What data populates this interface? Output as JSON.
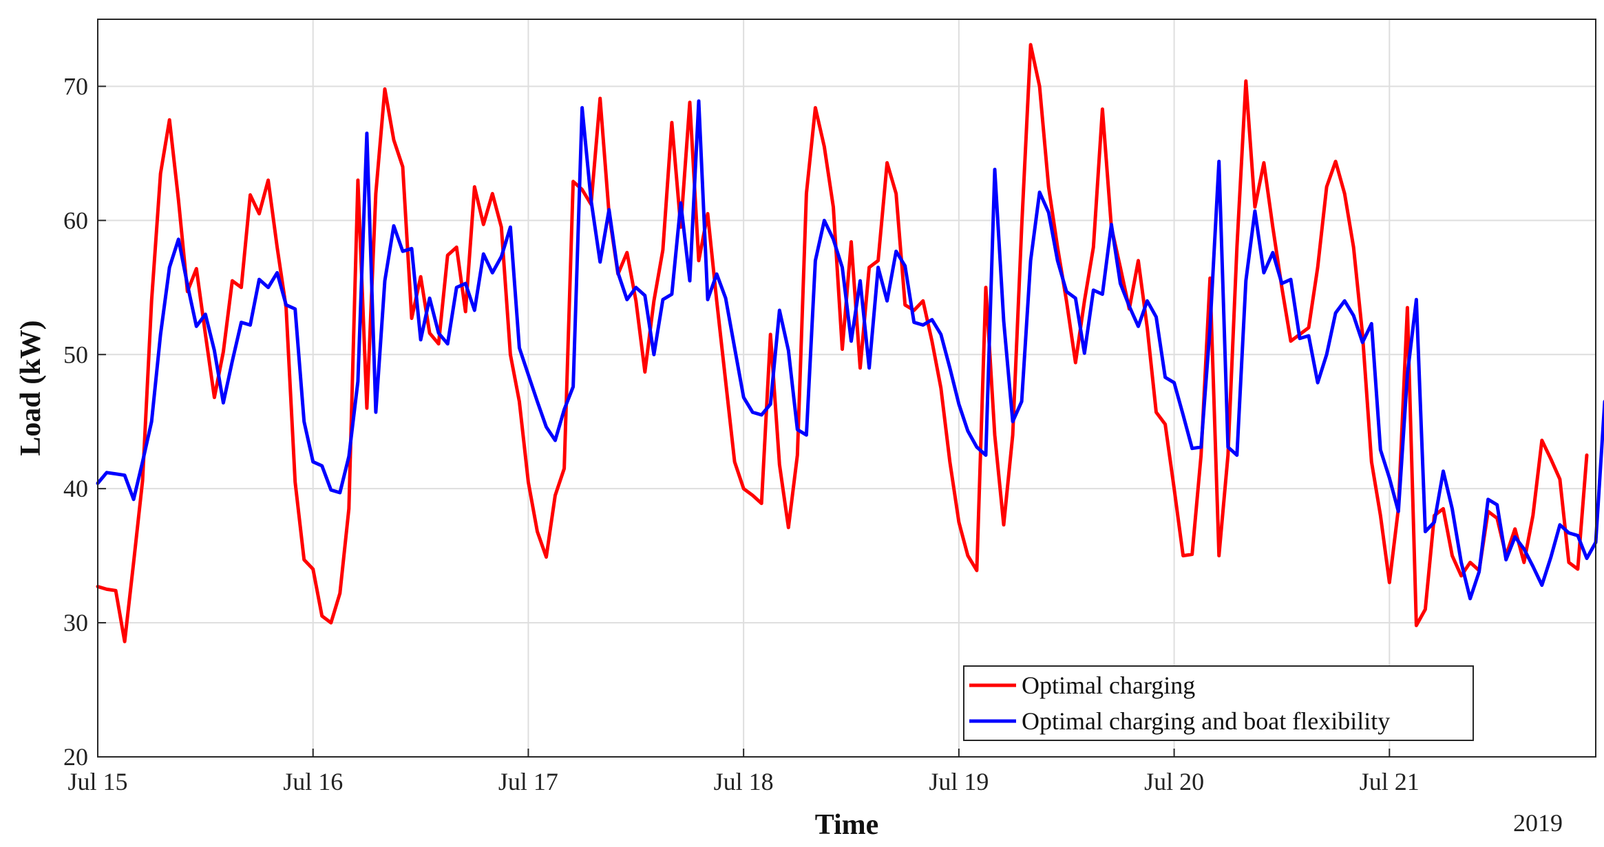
{
  "chart_data": {
    "type": "line",
    "title": "",
    "xlabel": "Time",
    "ylabel": "Load (kW)",
    "year_label": "2019",
    "xlim": [
      0,
      167
    ],
    "ylim": [
      20,
      75
    ],
    "yticks": [
      20,
      30,
      40,
      50,
      60,
      70
    ],
    "x_ticks": [
      {
        "x": 0,
        "label": "Jul 15"
      },
      {
        "x": 24,
        "label": "Jul 16"
      },
      {
        "x": 48,
        "label": "Jul 17"
      },
      {
        "x": 72,
        "label": "Jul 18"
      },
      {
        "x": 96,
        "label": "Jul 19"
      },
      {
        "x": 120,
        "label": "Jul 20"
      },
      {
        "x": 144,
        "label": "Jul 21"
      }
    ],
    "grid": true,
    "legend_position": "bottom-right",
    "x_unit": "hours since Jul 15 00:00",
    "series": [
      {
        "name": "Optimal charging",
        "color": "#ff0000",
        "values": [
          32.7,
          32.5,
          32.4,
          28.6,
          34.5,
          40.6,
          54.0,
          63.5,
          67.5,
          61.5,
          54.7,
          56.4,
          51.5,
          46.8,
          50.2,
          55.5,
          55.0,
          61.9,
          60.5,
          63.0,
          58.0,
          53.5,
          40.5,
          34.7,
          34.0,
          30.5,
          30.0,
          32.2,
          38.5,
          63.0,
          46.0,
          62.0,
          69.8,
          66.0,
          64.0,
          52.7,
          55.8,
          51.6,
          50.8,
          57.4,
          58.0,
          53.2,
          62.5,
          59.7,
          62.0,
          59.5,
          50.0,
          46.5,
          40.5,
          36.8,
          34.9,
          39.5,
          41.5,
          62.9,
          62.3,
          61.2,
          69.1,
          60.5,
          56.0,
          57.6,
          54.0,
          48.7,
          54.0,
          57.8,
          67.3,
          59.5,
          68.8,
          57.0,
          60.5,
          54.0,
          48.0,
          42.0,
          40.0,
          39.5,
          38.9,
          51.5,
          41.8,
          37.1,
          42.5,
          62.0,
          68.4,
          65.5,
          61.0,
          50.4,
          58.4,
          49.0,
          56.5,
          57.0,
          64.3,
          62.0,
          53.7,
          53.3,
          54.0,
          51.0,
          47.5,
          42.0,
          37.5,
          35.0,
          33.9,
          55.0,
          44.0,
          37.3,
          44.0,
          59.5,
          73.1,
          70.0,
          62.5,
          58.0,
          54.0,
          49.4,
          54.0,
          58.0,
          68.3,
          59.5,
          56.5,
          53.4,
          57.0,
          52.0,
          45.7,
          44.8,
          40.0,
          35.0,
          35.1,
          42.5,
          55.7,
          35.0,
          42.5,
          58.0,
          70.4,
          61.0,
          64.3,
          59.5,
          55.0,
          51.0,
          51.5,
          52.0,
          56.5,
          62.5,
          64.4,
          62.0,
          58.0,
          51.5,
          42.0,
          38.0,
          33.0,
          38.5,
          53.5,
          29.8,
          31.0,
          38.0,
          38.5,
          35.0,
          33.5,
          34.5,
          33.9,
          38.3,
          37.8,
          35.0,
          37.0,
          34.5,
          38.0,
          43.6,
          42.2,
          40.7,
          34.5,
          34.0,
          42.5
        ]
      },
      {
        "name": "Optimal charging and boat flexibility",
        "color": "#0000ff",
        "values": [
          40.4,
          41.2,
          41.1,
          41.0,
          39.2,
          42.0,
          45.0,
          51.5,
          56.5,
          58.6,
          55.2,
          52.1,
          53.0,
          50.3,
          46.4,
          49.5,
          52.4,
          52.2,
          55.6,
          55.0,
          56.1,
          53.7,
          53.4,
          45.0,
          42.0,
          41.7,
          39.9,
          39.7,
          42.4,
          48.0,
          66.5,
          45.7,
          55.5,
          59.6,
          57.7,
          57.9,
          51.1,
          54.2,
          51.6,
          50.8,
          55.0,
          55.3,
          53.3,
          57.5,
          56.1,
          57.3,
          59.5,
          50.5,
          48.5,
          46.5,
          44.6,
          43.6,
          45.9,
          47.6,
          68.4,
          61.5,
          56.9,
          60.8,
          56.1,
          54.1,
          55.0,
          54.4,
          50.0,
          54.1,
          54.5,
          61.3,
          55.5,
          68.9,
          54.1,
          56.0,
          54.2,
          50.5,
          46.8,
          45.7,
          45.5,
          46.3,
          53.3,
          50.3,
          44.4,
          44.0,
          57.0,
          60.0,
          58.6,
          56.5,
          51.0,
          55.5,
          49.0,
          56.5,
          54.0,
          57.7,
          56.6,
          52.4,
          52.2,
          52.6,
          51.5,
          49.0,
          46.3,
          44.3,
          43.1,
          42.5,
          63.8,
          52.5,
          45.0,
          46.5,
          57.0,
          62.1,
          60.6,
          57.0,
          54.7,
          54.2,
          50.1,
          54.8,
          54.5,
          59.7,
          55.3,
          53.6,
          52.1,
          54.0,
          52.8,
          48.3,
          47.9,
          45.5,
          43.0,
          43.1,
          52.0,
          64.4,
          43.1,
          42.5,
          55.5,
          60.7,
          56.1,
          57.6,
          55.3,
          55.6,
          51.2,
          51.4,
          47.9,
          50.0,
          53.1,
          54.0,
          52.9,
          50.9,
          52.3,
          42.9,
          40.8,
          38.3,
          48.5,
          54.1,
          36.8,
          37.5,
          41.3,
          38.5,
          34.5,
          31.8,
          33.8,
          39.2,
          38.8,
          34.7,
          36.4,
          35.5,
          34.2,
          32.8,
          34.9,
          37.3,
          36.7,
          36.5,
          34.8,
          36.0,
          46.5
        ]
      }
    ]
  }
}
